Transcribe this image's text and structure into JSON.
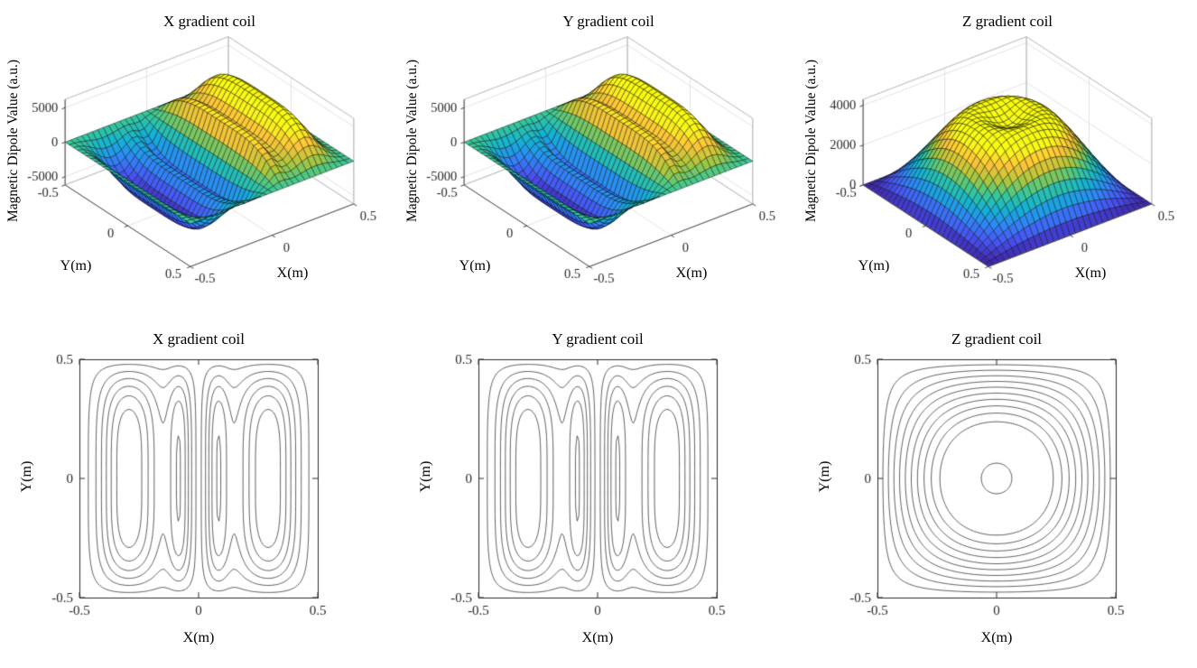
{
  "page": {
    "background": "#ffffff"
  },
  "style": {
    "parula": [
      [
        0,
        [
          62,
          38,
          168
        ]
      ],
      [
        0.12,
        [
          72,
          82,
          244
        ]
      ],
      [
        0.25,
        [
          46,
          135,
          247
        ]
      ],
      [
        0.37,
        [
          18,
          177,
          214
        ]
      ],
      [
        0.5,
        [
          55,
          200,
          151
        ]
      ],
      [
        0.62,
        [
          171,
          199,
          57
        ]
      ],
      [
        0.75,
        [
          254,
          195,
          56
        ]
      ],
      [
        0.88,
        [
          250,
          251,
          21
        ]
      ],
      [
        1,
        [
          249,
          251,
          14
        ]
      ]
    ],
    "contour_line_color": "#3f3f3f",
    "axis_color": "#262626",
    "grid_color": "#e2e2e2",
    "box_color": "#b5b5b5"
  },
  "chart_data": [
    {
      "id": "surf-x",
      "type": "surface",
      "title": "X gradient coil",
      "xlabel": "X(m)",
      "ylabel": "Y(m)",
      "zlabel": "Magnetic Dipole Value (a.u.)",
      "xlim": [
        -0.5,
        0.5
      ],
      "ylim": [
        -0.5,
        0.5
      ],
      "zlim": [
        -6200,
        6200
      ],
      "xticks": [
        -0.5,
        0,
        0.5
      ],
      "yticks": [
        -0.5,
        0,
        0.5
      ],
      "zticks": [
        -5000,
        0,
        5000
      ],
      "peak_value": 6000,
      "mesh_n": 30,
      "model": {
        "kind": "antisymmetric_lobes",
        "main_center": 0.32,
        "main_sigma": 0.105,
        "inner_center": 0.08,
        "inner_sigma": 0.035,
        "inner_amp": 0.5,
        "window_power": 4,
        "window_exponent": 1.4
      }
    },
    {
      "id": "surf-y",
      "type": "surface",
      "title": "Y gradient coil",
      "xlabel": "X(m)",
      "ylabel": "Y(m)",
      "zlabel": "Magnetic Dipole Value (a.u.)",
      "xlim": [
        -0.5,
        0.5
      ],
      "ylim": [
        -0.5,
        0.5
      ],
      "zlim": [
        -6200,
        6200
      ],
      "xticks": [
        -0.5,
        0,
        0.5
      ],
      "yticks": [
        -0.5,
        0,
        0.5
      ],
      "zticks": [
        -5000,
        0,
        5000
      ],
      "peak_value": 6000,
      "mesh_n": 30,
      "model": {
        "kind": "antisymmetric_lobes",
        "main_center": 0.32,
        "main_sigma": 0.105,
        "inner_center": 0.08,
        "inner_sigma": 0.035,
        "inner_amp": 0.5,
        "window_power": 4,
        "window_exponent": 1.4
      }
    },
    {
      "id": "surf-z",
      "type": "surface",
      "title": "Z gradient coil",
      "xlabel": "X(m)",
      "ylabel": "Y(m)",
      "zlabel": "Magnetic Dipole Value (a.u.)",
      "xlim": [
        -0.5,
        0.5
      ],
      "ylim": [
        -0.5,
        0.5
      ],
      "zlim": [
        0,
        4300
      ],
      "xticks": [
        -0.5,
        0,
        0.5
      ],
      "yticks": [
        -0.5,
        0,
        0.5
      ],
      "zticks": [
        0,
        2000,
        4000
      ],
      "peak_value": 4000,
      "mesh_n": 30,
      "model": {
        "kind": "dome_crater",
        "crater_depth": 0.32,
        "crater_power": 10
      }
    },
    {
      "id": "cont-x",
      "type": "contour",
      "title": "X gradient coil",
      "xlabel": "X(m)",
      "ylabel": "Y(m)",
      "xlim": [
        -0.5,
        0.5
      ],
      "ylim": [
        -0.5,
        0.5
      ],
      "xticks": [
        -0.5,
        0,
        0.5
      ],
      "yticks": [
        -0.5,
        0,
        0.5
      ],
      "n_levels": 12,
      "grid_n": 140,
      "peak_value": 6000,
      "model": {
        "kind": "antisymmetric_lobes",
        "main_center": 0.32,
        "main_sigma": 0.105,
        "inner_center": 0.08,
        "inner_sigma": 0.035,
        "inner_amp": 0.5,
        "window_power": 4,
        "window_exponent": 1.4
      }
    },
    {
      "id": "cont-y",
      "type": "contour",
      "title": "Y gradient coil",
      "xlabel": "X(m)",
      "ylabel": "Y(m)",
      "xlim": [
        -0.5,
        0.5
      ],
      "ylim": [
        -0.5,
        0.5
      ],
      "xticks": [
        -0.5,
        0,
        0.5
      ],
      "yticks": [
        -0.5,
        0,
        0.5
      ],
      "n_levels": 12,
      "grid_n": 140,
      "peak_value": 6000,
      "model": {
        "kind": "antisymmetric_lobes",
        "main_center": 0.32,
        "main_sigma": 0.105,
        "inner_center": 0.08,
        "inner_sigma": 0.035,
        "inner_amp": 0.5,
        "window_power": 4,
        "window_exponent": 1.4
      }
    },
    {
      "id": "cont-z",
      "type": "contour",
      "title": "Z gradient coil",
      "xlabel": "X(m)",
      "ylabel": "Y(m)",
      "xlim": [
        -0.5,
        0.5
      ],
      "ylim": [
        -0.5,
        0.5
      ],
      "xticks": [
        -0.5,
        0,
        0.5
      ],
      "yticks": [
        -0.5,
        0,
        0.5
      ],
      "n_levels": 10,
      "grid_n": 140,
      "peak_value": 4000,
      "model": {
        "kind": "dome_crater",
        "crater_depth": 0.32,
        "crater_power": 10
      }
    }
  ]
}
